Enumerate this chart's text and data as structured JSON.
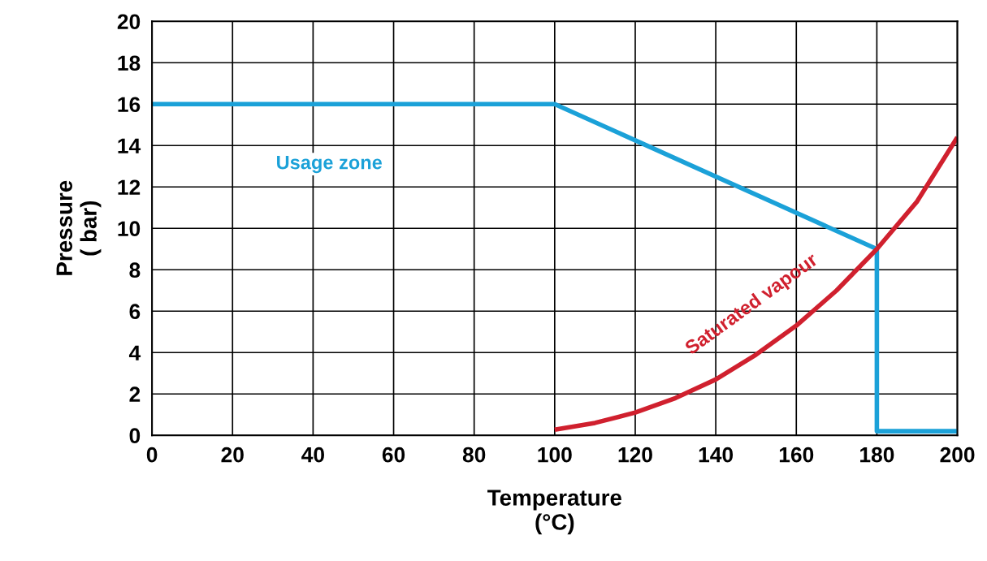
{
  "chart_data": {
    "type": "line",
    "xlabel": "Temperature\n(°C)",
    "ylabel": "Pressure\n( bar)",
    "xlim": [
      0,
      200
    ],
    "ylim": [
      0,
      20
    ],
    "xticks": [
      0,
      20,
      40,
      60,
      80,
      100,
      120,
      140,
      160,
      180,
      200
    ],
    "yticks": [
      0,
      2,
      4,
      6,
      8,
      10,
      12,
      14,
      16,
      18,
      20
    ],
    "grid": true,
    "legend": false,
    "marker": "none",
    "line_style": "solid",
    "series": [
      {
        "name": "Usage zone",
        "color": "#1ba1d8",
        "x": [
          0,
          100,
          180,
          180,
          200
        ],
        "values": [
          16,
          16,
          9,
          0.2,
          0.2
        ]
      },
      {
        "name": "Saturated vapour",
        "color": "#d0202e",
        "x": [
          100,
          110,
          120,
          130,
          140,
          150,
          160,
          170,
          180,
          190,
          200
        ],
        "values": [
          0.27,
          0.6,
          1.1,
          1.8,
          2.7,
          3.9,
          5.3,
          7.0,
          9.0,
          11.3,
          14.4
        ]
      }
    ]
  }
}
